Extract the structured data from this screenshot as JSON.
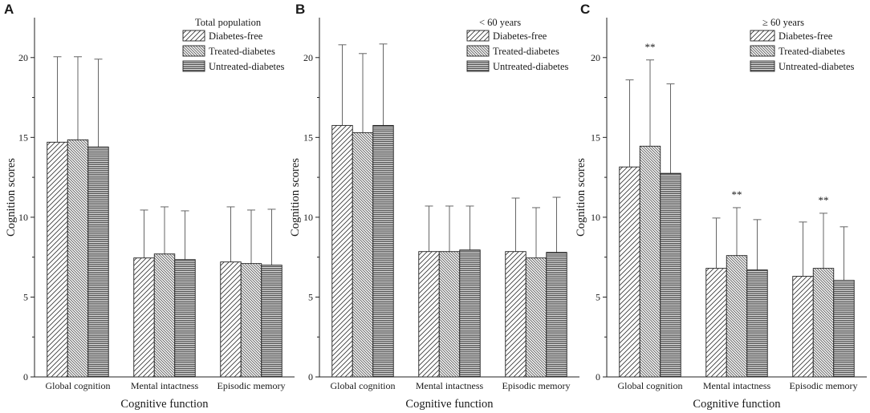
{
  "colors": {
    "axis": "#222222",
    "hatch": "#333333",
    "background": "#ffffff"
  },
  "chart_data": [
    {
      "panel": "A",
      "type": "bar",
      "legend_title": "Total population",
      "categories": [
        "Global cognition",
        "Mental intactness",
        "Episodic memory"
      ],
      "series": [
        {
          "name": "Diabetes-free",
          "pattern": "diag-forward",
          "values": [
            14.7,
            7.45,
            7.2
          ],
          "error_upper": [
            20.05,
            10.45,
            10.65
          ]
        },
        {
          "name": "Treated-diabetes",
          "pattern": "diag-back",
          "values": [
            14.85,
            7.7,
            7.1
          ],
          "error_upper": [
            20.05,
            10.65,
            10.45
          ]
        },
        {
          "name": "Untreated-diabetes",
          "pattern": "horizontal",
          "values": [
            14.4,
            7.35,
            7.0
          ],
          "error_upper": [
            19.9,
            10.4,
            10.5
          ]
        }
      ],
      "significance": [
        "",
        "",
        ""
      ],
      "xlabel": "Cognitive function",
      "ylabel": "Cognition scores",
      "yticks": [
        0,
        5,
        10,
        15,
        20
      ],
      "ylim": [
        0,
        22.5
      ]
    },
    {
      "panel": "B",
      "type": "bar",
      "legend_title": "< 60 years",
      "categories": [
        "Global cognition",
        "Mental intactness",
        "Episodic memory"
      ],
      "series": [
        {
          "name": "Diabetes-free",
          "pattern": "diag-forward",
          "values": [
            15.75,
            7.85,
            7.85
          ],
          "error_upper": [
            20.8,
            10.7,
            11.2
          ]
        },
        {
          "name": "Treated-diabetes",
          "pattern": "diag-back",
          "values": [
            15.3,
            7.85,
            7.45
          ],
          "error_upper": [
            20.25,
            10.7,
            10.6
          ]
        },
        {
          "name": "Untreated-diabetes",
          "pattern": "horizontal",
          "values": [
            15.75,
            7.95,
            7.8
          ],
          "error_upper": [
            20.85,
            10.7,
            11.25
          ]
        }
      ],
      "significance": [
        "",
        "",
        ""
      ],
      "xlabel": "Cognitive function",
      "ylabel": "Cognition scores",
      "yticks": [
        0,
        5,
        10,
        15,
        20
      ],
      "ylim": [
        0,
        22.5
      ]
    },
    {
      "panel": "C",
      "type": "bar",
      "legend_title": "≥ 60 years",
      "categories": [
        "Global cognition",
        "Mental intactness",
        "Episodic memory"
      ],
      "series": [
        {
          "name": "Diabetes-free",
          "pattern": "diag-forward",
          "values": [
            13.15,
            6.8,
            6.3
          ],
          "error_upper": [
            18.6,
            9.95,
            9.7
          ]
        },
        {
          "name": "Treated-diabetes",
          "pattern": "diag-back",
          "values": [
            14.45,
            7.6,
            6.8
          ],
          "error_upper": [
            19.85,
            10.6,
            10.25
          ]
        },
        {
          "name": "Untreated-diabetes",
          "pattern": "horizontal",
          "values": [
            12.75,
            6.7,
            6.05
          ],
          "error_upper": [
            18.35,
            9.85,
            9.4
          ]
        }
      ],
      "significance": [
        "**",
        "**",
        "**"
      ],
      "xlabel": "Cognitive function",
      "ylabel": "Cognition scores",
      "yticks": [
        0,
        5,
        10,
        15,
        20
      ],
      "ylim": [
        0,
        22.5
      ]
    }
  ]
}
